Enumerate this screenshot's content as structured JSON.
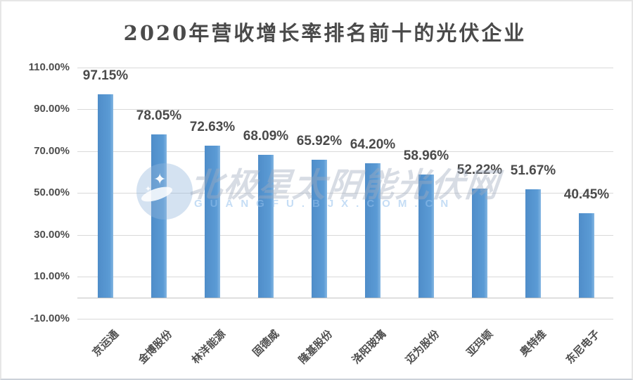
{
  "chart_data": {
    "type": "bar",
    "title": "2020年营收增长率排名前十的光伏企业",
    "categories": [
      "京运通",
      "金博股份",
      "林洋能源",
      "固德威",
      "隆基股份",
      "洛阳玻璃",
      "迈为股份",
      "亚玛顿",
      "奥特维",
      "东尼电子"
    ],
    "values": [
      97.15,
      78.05,
      72.63,
      68.09,
      65.92,
      64.2,
      58.96,
      52.22,
      51.67,
      40.45
    ],
    "value_labels": [
      "97.15%",
      "78.05%",
      "72.63%",
      "68.09%",
      "65.92%",
      "64.20%",
      "58.96%",
      "52.22%",
      "51.67%",
      "40.45%"
    ],
    "ytick_labels": [
      "110.00%",
      "90.00%",
      "70.00%",
      "50.00%",
      "30.00%",
      "10.00%",
      "-10.00%"
    ],
    "ytick_values": [
      110,
      90,
      70,
      50,
      30,
      10,
      -10
    ],
    "ylim": [
      -10,
      110
    ],
    "xlabel": "",
    "ylabel": "",
    "grid": true,
    "legend": "none",
    "bar_color": "#5b9bd5",
    "grid_color": "#d9d9d9"
  },
  "watermark": {
    "cn": "北极星太阳能光伏网",
    "en": "GUANGFU.BJX.COM.CN",
    "logo": "star-circle-logo"
  }
}
